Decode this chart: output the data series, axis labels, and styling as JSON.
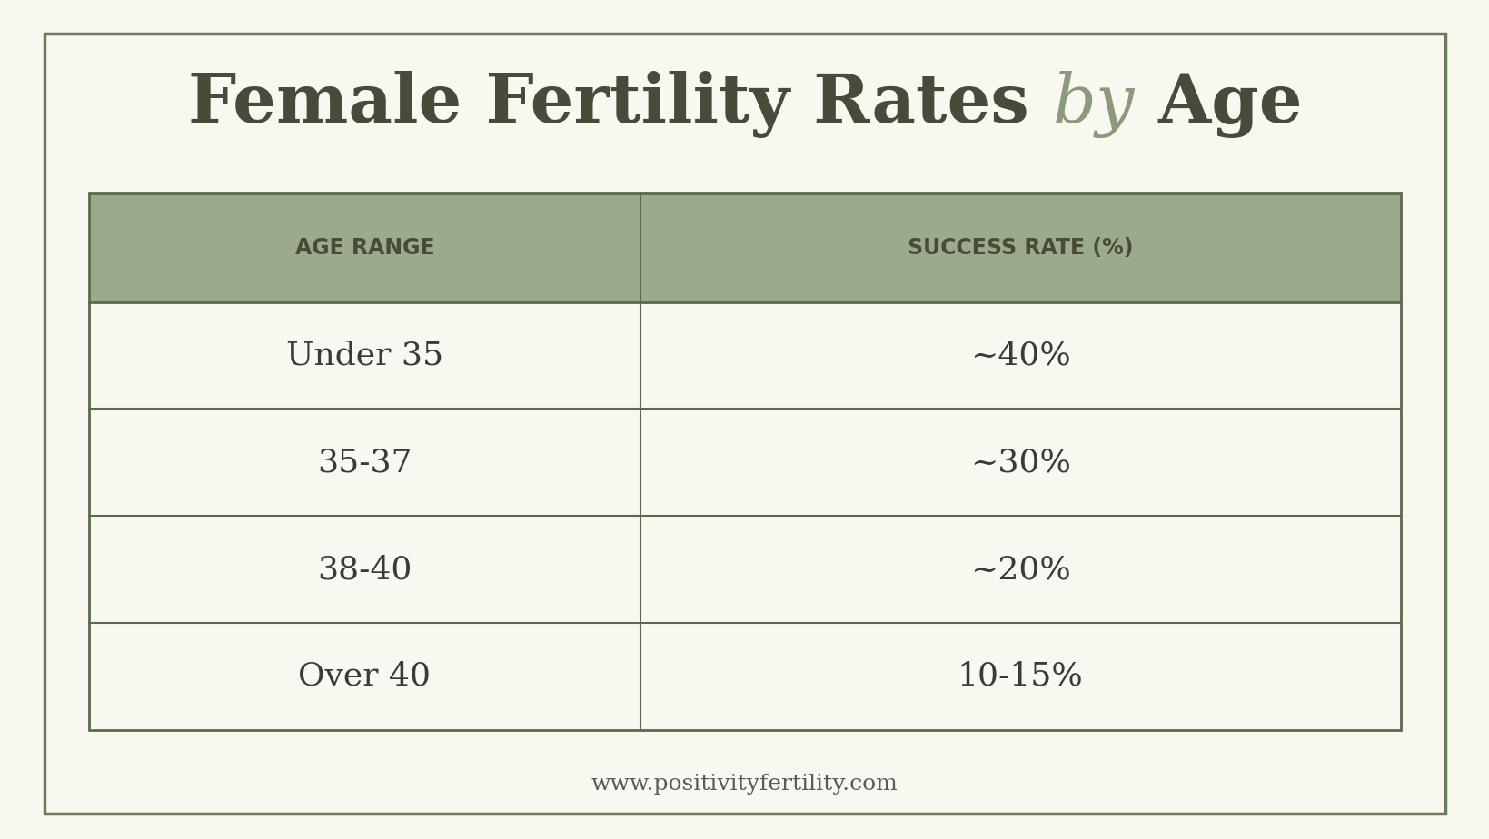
{
  "title_part1": "Female Fertility Rates ",
  "title_italic": "by",
  "title_part2": " Age",
  "title_color_main": "#4a4a3a",
  "title_color_italic": "#8a9a7a",
  "header_bg_color": "#9aaa8a",
  "header_text_color": "#4a4a3a",
  "header_col1": "AGE RANGE",
  "header_col2": "SUCCESS RATE (%)",
  "rows": [
    [
      "Under 35",
      "~40%"
    ],
    [
      "35-37",
      "~30%"
    ],
    [
      "38-40",
      "~20%"
    ],
    [
      "Over 40",
      "10-15%"
    ]
  ],
  "row_text_color": "#3a3a3a",
  "background_color": "#f8f8f0",
  "footer_text": "www.positivityfertility.com",
  "footer_color": "#5a5a5a",
  "outer_border_color": "#6a7a5a",
  "table_border_color": "#5a6a4a"
}
